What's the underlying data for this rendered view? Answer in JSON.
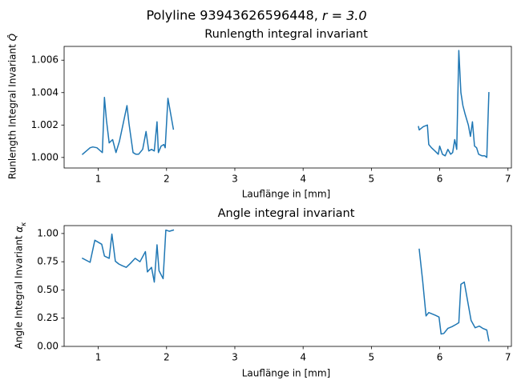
{
  "figure_title": "Polyline 93943626596448, $r = 3.0$",
  "chart_data": [
    {
      "type": "line",
      "title": "Runlength integral invariant",
      "xlabel": "Lauflänge in [mm]",
      "ylabel": "Runlength Integral Invariant $\\hat{Q}$",
      "xlim": [
        0.5,
        7.05
      ],
      "ylim": [
        0.99935,
        1.00685
      ],
      "xticks": [
        1,
        2,
        3,
        4,
        5,
        6,
        7
      ],
      "yticks": [
        1.0,
        1.002,
        1.004,
        1.006
      ],
      "xtick_labels": [
        "1",
        "2",
        "3",
        "4",
        "5",
        "6",
        "7"
      ],
      "ytick_labels": [
        "1.000",
        "1.002",
        "1.004",
        "1.006"
      ],
      "grid": false,
      "series": [
        {
          "color": "#1f77b4",
          "segments": [
            [
              [
                0.77,
                1.0002
              ],
              [
                0.88,
                1.0006
              ],
              [
                0.92,
                1.00065
              ],
              [
                0.98,
                1.0006
              ],
              [
                1.06,
                1.0003
              ],
              [
                1.09,
                1.0037
              ],
              [
                1.12,
                1.0023
              ],
              [
                1.16,
                1.0009
              ],
              [
                1.21,
                1.0011
              ],
              [
                1.26,
                1.0003
              ],
              [
                1.31,
                1.001
              ],
              [
                1.36,
                1.002
              ],
              [
                1.42,
                1.0032
              ],
              [
                1.45,
                1.0021
              ],
              [
                1.51,
                1.0003
              ],
              [
                1.55,
                1.0002
              ],
              [
                1.59,
                1.0002
              ],
              [
                1.65,
                1.0005
              ],
              [
                1.7,
                1.0016
              ],
              [
                1.74,
                1.0004
              ],
              [
                1.78,
                1.0005
              ],
              [
                1.82,
                1.0004
              ],
              [
                1.86,
                1.0022
              ],
              [
                1.88,
                1.0003
              ],
              [
                1.92,
                1.0007
              ],
              [
                1.96,
                1.0008
              ],
              [
                1.98,
                1.0006
              ],
              [
                2.02,
                1.00365
              ],
              [
                2.06,
                1.0027
              ],
              [
                2.1,
                1.00175
              ]
            ],
            [
              [
                5.69,
                1.0019
              ],
              [
                5.7,
                1.0017
              ],
              [
                5.76,
                1.0019
              ],
              [
                5.82,
                1.002
              ],
              [
                5.84,
                1.0008
              ],
              [
                5.88,
                1.0006
              ],
              [
                5.93,
                1.0004
              ],
              [
                5.98,
                1.0002
              ],
              [
                6.0,
                1.0007
              ],
              [
                6.04,
                1.0002
              ],
              [
                6.08,
                1.0001
              ],
              [
                6.12,
                1.0005
              ],
              [
                6.16,
                1.0002
              ],
              [
                6.19,
                1.0003
              ],
              [
                6.22,
                1.0011
              ],
              [
                6.25,
                1.0005
              ],
              [
                6.28,
                1.0066
              ],
              [
                6.31,
                1.004
              ],
              [
                6.34,
                1.0032
              ],
              [
                6.37,
                1.0027
              ],
              [
                6.42,
                1.002
              ],
              [
                6.45,
                1.0013
              ],
              [
                6.48,
                1.0022
              ],
              [
                6.51,
                1.0007
              ],
              [
                6.54,
                1.0006
              ],
              [
                6.57,
                1.0002
              ],
              [
                6.62,
                1.0001
              ],
              [
                6.66,
                1.0001
              ],
              [
                6.69,
                1.0
              ],
              [
                6.72,
                1.004
              ]
            ]
          ]
        }
      ]
    },
    {
      "type": "line",
      "title": "Angle integral invariant",
      "xlabel": "Lauflänge in [mm]",
      "ylabel": "Angle Integral Invariant $\\alpha_\\kappa$",
      "xlim": [
        0.5,
        7.05
      ],
      "ylim": [
        0.0,
        1.07
      ],
      "xticks": [
        1,
        2,
        3,
        4,
        5,
        6,
        7
      ],
      "yticks": [
        0.0,
        0.25,
        0.5,
        0.75,
        1.0
      ],
      "xtick_labels": [
        "1",
        "2",
        "3",
        "4",
        "5",
        "6",
        "7"
      ],
      "ytick_labels": [
        "0.00",
        "0.25",
        "0.50",
        "0.75",
        "1.00"
      ],
      "grid": false,
      "series": [
        {
          "color": "#1f77b4",
          "segments": [
            [
              [
                0.77,
                0.78
              ],
              [
                0.88,
                0.745
              ],
              [
                0.95,
                0.94
              ],
              [
                1.05,
                0.905
              ],
              [
                1.09,
                0.8
              ],
              [
                1.16,
                0.78
              ],
              [
                1.2,
                0.995
              ],
              [
                1.25,
                0.755
              ],
              [
                1.3,
                0.73
              ],
              [
                1.35,
                0.715
              ],
              [
                1.41,
                0.7
              ],
              [
                1.47,
                0.735
              ],
              [
                1.54,
                0.78
              ],
              [
                1.61,
                0.75
              ],
              [
                1.69,
                0.84
              ],
              [
                1.72,
                0.66
              ],
              [
                1.78,
                0.7
              ],
              [
                1.82,
                0.57
              ],
              [
                1.86,
                0.9
              ],
              [
                1.89,
                0.67
              ],
              [
                1.95,
                0.6
              ],
              [
                1.99,
                1.03
              ],
              [
                2.04,
                1.02
              ],
              [
                2.1,
                1.03
              ]
            ],
            [
              [
                5.7,
                0.86
              ],
              [
                5.75,
                0.58
              ],
              [
                5.8,
                0.27
              ],
              [
                5.84,
                0.3
              ],
              [
                5.88,
                0.29
              ],
              [
                5.94,
                0.275
              ],
              [
                5.99,
                0.26
              ],
              [
                6.02,
                0.11
              ],
              [
                6.06,
                0.115
              ],
              [
                6.12,
                0.16
              ],
              [
                6.18,
                0.175
              ],
              [
                6.24,
                0.195
              ],
              [
                6.28,
                0.21
              ],
              [
                6.31,
                0.55
              ],
              [
                6.36,
                0.57
              ],
              [
                6.46,
                0.23
              ],
              [
                6.52,
                0.165
              ],
              [
                6.58,
                0.18
              ],
              [
                6.63,
                0.16
              ],
              [
                6.69,
                0.145
              ],
              [
                6.72,
                0.05
              ]
            ]
          ]
        }
      ]
    }
  ]
}
